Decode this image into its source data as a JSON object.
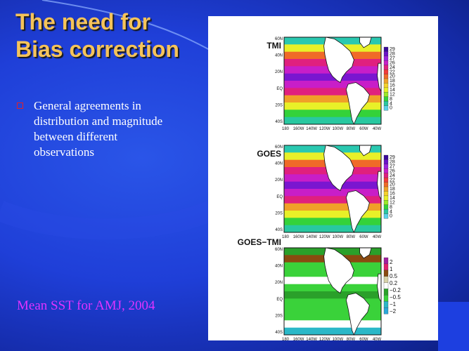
{
  "slide": {
    "title": "The need for\nBias correction",
    "bullets": [
      "General agreements in distribution and magnitude between different observations"
    ],
    "caption": "Mean SST for AMJ, 2004"
  },
  "figure": {
    "x_ticks": [
      "180",
      "160W",
      "140W",
      "120W",
      "100W",
      "80W",
      "60W",
      "40W"
    ],
    "y_ticks": [
      "60N",
      "40N",
      "20N",
      "EQ",
      "20S",
      "40S"
    ],
    "panels": [
      {
        "label": "TMI",
        "colorbar": [
          "29",
          "28",
          "27",
          "26",
          "24",
          "22",
          "20",
          "18",
          "16",
          "14",
          "12",
          "8",
          "4",
          "0"
        ],
        "colors": [
          "#3a0a9a",
          "#6a12c8",
          "#9a22e0",
          "#c81ec8",
          "#e0207e",
          "#f23a3a",
          "#f06a28",
          "#f0a028",
          "#f5d22a",
          "#e8f028",
          "#9aea28",
          "#34d23a",
          "#28c8a0",
          "#5ad2e8"
        ]
      },
      {
        "label": "GOES",
        "colorbar": [
          "29",
          "28",
          "27",
          "26",
          "24",
          "22",
          "20",
          "18",
          "16",
          "14",
          "12",
          "8",
          "4",
          "0"
        ],
        "colors": [
          "#3a0a9a",
          "#6a12c8",
          "#9a22e0",
          "#c81ec8",
          "#e0207e",
          "#f23a3a",
          "#f06a28",
          "#f0a028",
          "#f5d22a",
          "#e8f028",
          "#9aea28",
          "#34d23a",
          "#28c8a0",
          "#5ad2e8"
        ]
      },
      {
        "label": "GOES−TMI",
        "colorbar": [
          "2",
          "1",
          "0.5",
          "0.2",
          "−0.2",
          "−0.5",
          "−1",
          "−2"
        ],
        "colors": [
          "#a21ea0",
          "#e0206e",
          "#8a4a10",
          "#d8d2a8",
          "#ffffff",
          "#2aa02a",
          "#3ad23a",
          "#2ab8c8",
          "#2aa8d8"
        ]
      }
    ]
  },
  "colors": {
    "background": "#1f3fd8",
    "title": "#f5c35a",
    "bullet_box": "#e0202a",
    "caption": "#e033ff"
  }
}
